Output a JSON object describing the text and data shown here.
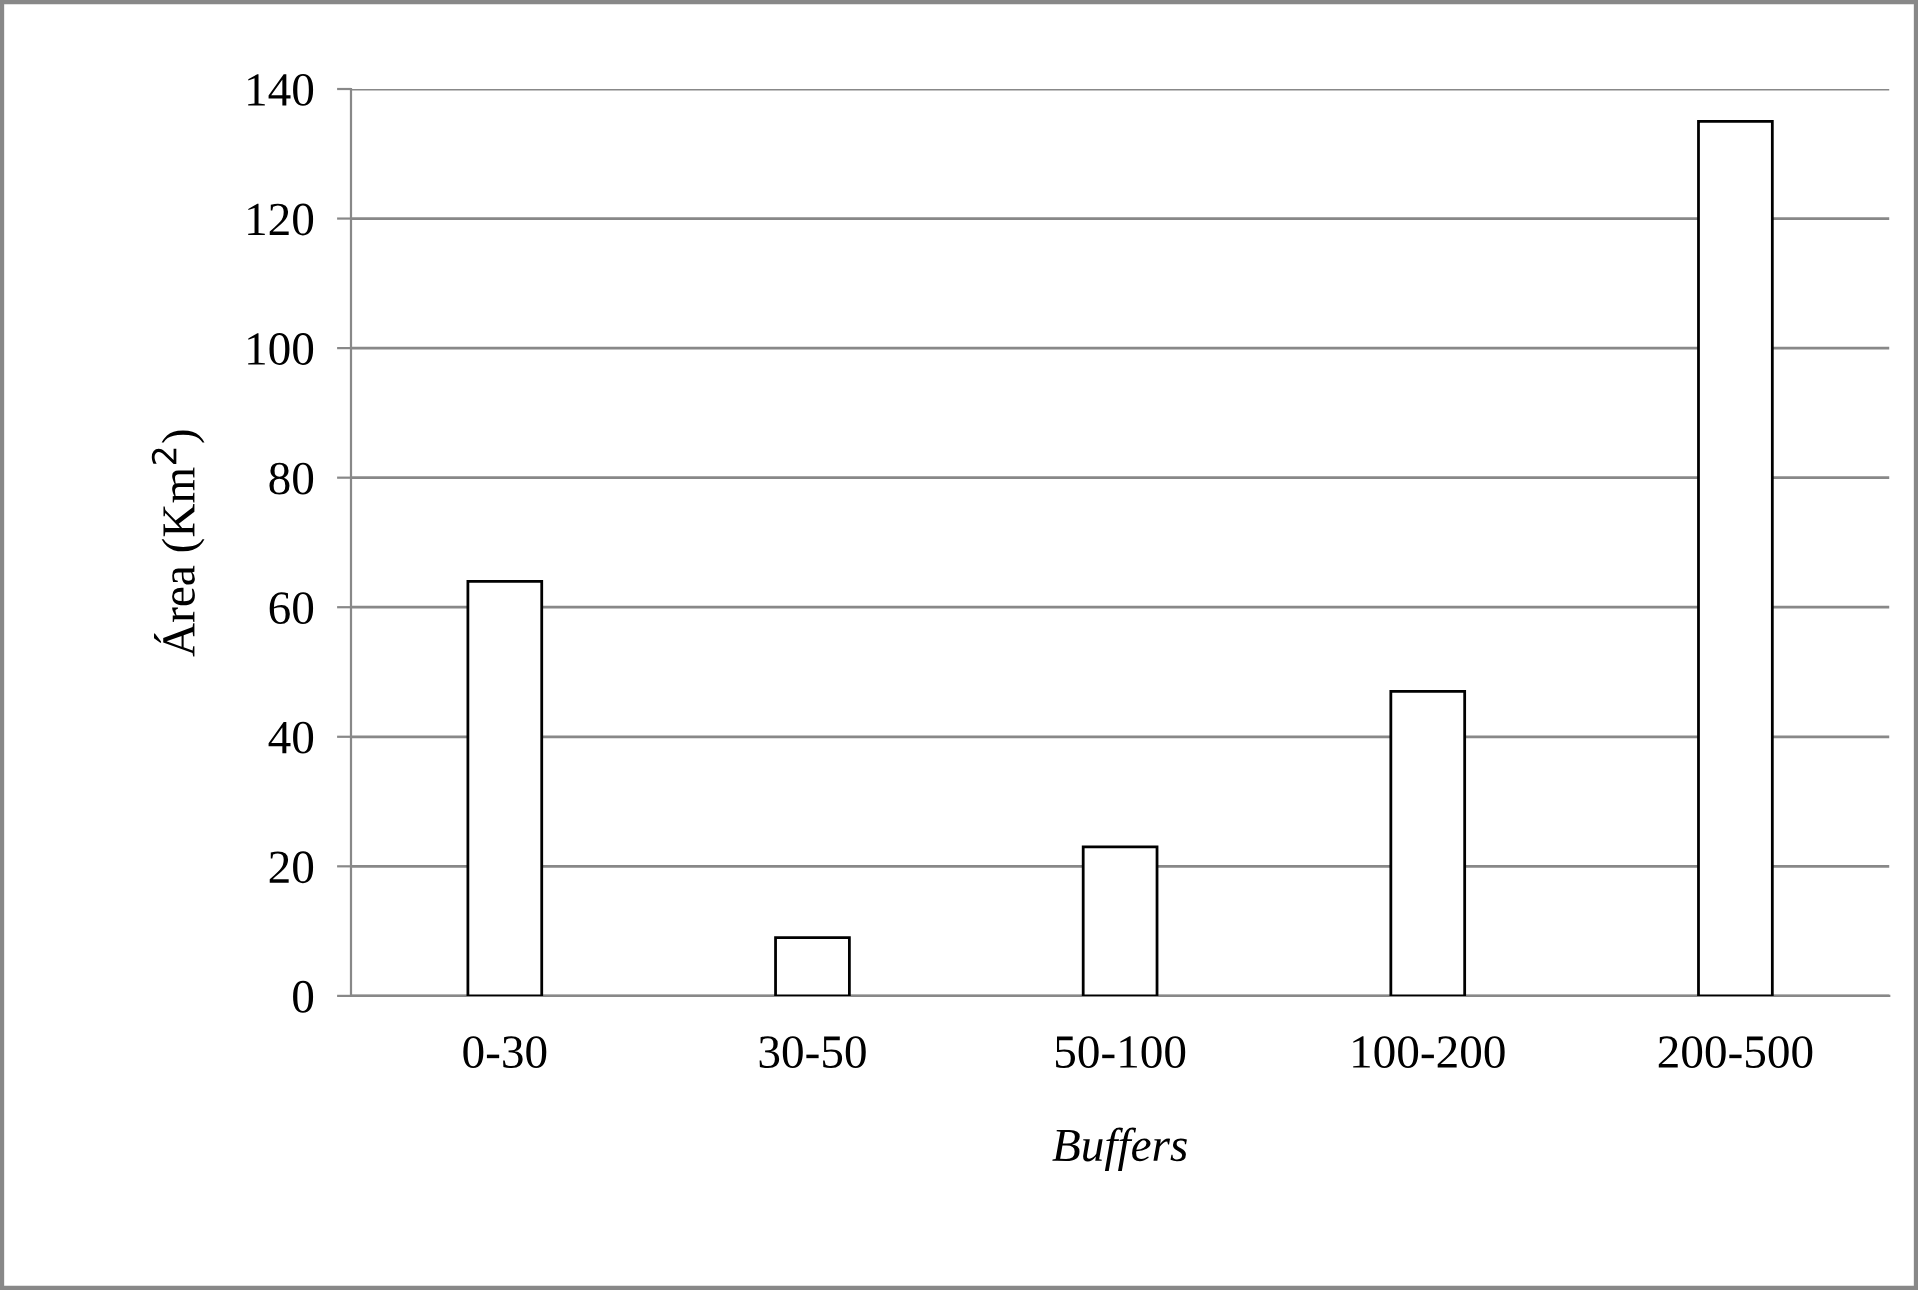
{
  "chart_data": {
    "type": "bar",
    "xlabel": "Buffers",
    "ylabel": "Área (Km$^{2}$)",
    "categories": [
      "0-30",
      "30-50",
      "50-100",
      "100-200",
      "200-500"
    ],
    "values": [
      64,
      9,
      23,
      47,
      135
    ],
    "color": "#ffffff",
    "ylim": [
      0,
      140
    ],
    "yticks": [
      0,
      20,
      40,
      60,
      80,
      100,
      120,
      140
    ],
    "grid": "y"
  }
}
